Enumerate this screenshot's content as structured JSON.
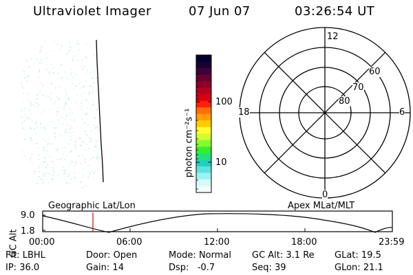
{
  "header": {
    "instrument": "Ultraviolet Imager",
    "date": "07 Jun 07",
    "time": "03:26:54 UT"
  },
  "colorbar": {
    "unit_label": "photon cm⁻²s⁻¹",
    "ticks": [
      "100",
      "10"
    ],
    "colors": [
      "#000033",
      "#1a0033",
      "#40003a",
      "#6a0030",
      "#900028",
      "#b80020",
      "#d80010",
      "#ff2000",
      "#ff7000",
      "#ffa000",
      "#ffcc00",
      "#ffff30",
      "#ccff30",
      "#80ff30",
      "#30f030",
      "#20e080",
      "#20d0c0",
      "#60e0e0",
      "#a0f0f0",
      "#d8f8f8",
      "#f4fcfc"
    ]
  },
  "polar_plot": {
    "mlt_labels": {
      "top": "12",
      "bottom": "0",
      "left": "18",
      "right": "6"
    },
    "lat_labels": [
      "60",
      "70",
      "80"
    ]
  },
  "altitude_strip": {
    "left_label": "Geographic Lat/Lon",
    "right_label": "Apex MLat/MLT",
    "axis_label": "GC Alt",
    "y_ticks": [
      "9.0",
      "1.8"
    ],
    "x_ticks": [
      "00:00",
      "06:00",
      "12:00",
      "18:00",
      "23:59"
    ],
    "marker_time_hours": 3.45
  },
  "status": {
    "row1": [
      {
        "label": "Flt:",
        "value": "LBHL"
      },
      {
        "label": "Door:",
        "value": "Open"
      },
      {
        "label": "Mode:",
        "value": "Normal"
      },
      {
        "label": "GC Alt:",
        "value": "3.1 Re"
      },
      {
        "label": "GLat:",
        "value": "19.5"
      }
    ],
    "row2": [
      {
        "label": "IP:",
        "value": "36.0"
      },
      {
        "label": "Gain:",
        "value": "14"
      },
      {
        "label": "Dsp:",
        "value": "-0.7"
      },
      {
        "label": "Seq:",
        "value": "39"
      },
      {
        "label": "GLon:",
        "value": "21.1"
      }
    ]
  }
}
